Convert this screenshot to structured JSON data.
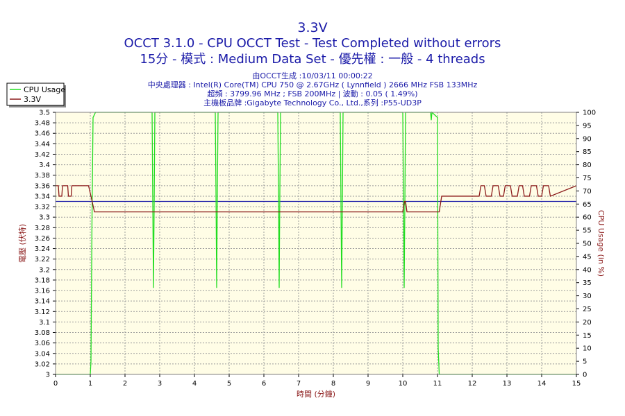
{
  "chart_data": {
    "type": "line",
    "title": "3.3V",
    "subtitle": "OCCT 3.1.0 - CPU OCCT Test - Test Completed without errors",
    "subtitle2": "15分 - 模式 : Medium Data Set - 優先權 : 一般 - 4 threads",
    "info": [
      "由OCCT生成 :10/03/11 00:00:22",
      "中央處理器 : Intel(R) Core(TM) CPU 750 @ 2.67GHz ( Lynnfield ) 2666 MHz FSB 133MHz",
      "超頻 : 3799.96 MHz ; FSB 200MHz | 波動 : 0.05 ( 1.49%)",
      "主機板品牌 :Gigabyte Technology Co., Ltd.,系列 :P55-UD3P"
    ],
    "xlabel": "時間 (分鐘)",
    "ylabel": "電壓 (伏特)",
    "y2label": "CPU Usage (in %)",
    "xlim": [
      0,
      15
    ],
    "ylim": [
      3.0,
      3.5
    ],
    "y2lim": [
      0,
      100
    ],
    "xticks": [
      "0",
      "1",
      "2",
      "3",
      "4",
      "5",
      "6",
      "7",
      "8",
      "9",
      "10",
      "11",
      "12",
      "13",
      "14",
      "15"
    ],
    "yticks": [
      "3",
      "3.02",
      "3.04",
      "3.06",
      "3.08",
      "3.1",
      "3.12",
      "3.14",
      "3.16",
      "3.18",
      "3.2",
      "3.22",
      "3.24",
      "3.26",
      "3.28",
      "3.3",
      "3.32",
      "3.34",
      "3.36",
      "3.38",
      "3.4",
      "3.42",
      "3.44",
      "3.46",
      "3.48",
      "3.5"
    ],
    "y2ticks": [
      "0",
      "5",
      "10",
      "15",
      "20",
      "25",
      "30",
      "35",
      "40",
      "45",
      "50",
      "55",
      "60",
      "65",
      "70",
      "75",
      "80",
      "85",
      "90",
      "95",
      "100"
    ],
    "grid": true,
    "legend_position": "top-left",
    "reference_line": {
      "y": 3.33,
      "color": "#1a1aa8"
    },
    "series": [
      {
        "name": "CPU Usage",
        "axis": "right",
        "color": "#22dd22",
        "x": [
          0.0,
          1.0,
          1.02,
          1.05,
          1.08,
          1.15,
          2.78,
          2.8,
          2.82,
          2.84,
          2.86,
          4.6,
          4.62,
          4.64,
          4.66,
          4.68,
          6.4,
          6.42,
          6.44,
          6.46,
          6.48,
          8.2,
          8.22,
          8.24,
          8.26,
          8.28,
          10.0,
          10.02,
          10.04,
          10.06,
          10.08,
          10.8,
          10.82,
          10.84,
          11.0,
          11.02,
          11.05,
          15.0
        ],
        "y": [
          0,
          0,
          5,
          60,
          98,
          100,
          100,
          65,
          33,
          65,
          100,
          100,
          70,
          33,
          70,
          100,
          100,
          70,
          33,
          70,
          100,
          100,
          65,
          33,
          65,
          100,
          100,
          65,
          33,
          65,
          100,
          100,
          97,
          100,
          98,
          10,
          0,
          0
        ]
      },
      {
        "name": "3.3V",
        "axis": "left",
        "color": "#8b1a1a",
        "x": [
          0.0,
          0.08,
          0.1,
          0.18,
          0.2,
          0.35,
          0.37,
          0.45,
          0.47,
          0.95,
          1.02,
          1.12,
          10.0,
          10.05,
          10.08,
          10.12,
          10.15,
          11.05,
          11.12,
          12.2,
          12.25,
          12.35,
          12.4,
          12.55,
          12.6,
          12.75,
          12.8,
          12.9,
          12.95,
          13.1,
          13.15,
          13.3,
          13.35,
          13.45,
          13.5,
          13.65,
          13.7,
          13.85,
          13.9,
          14.0,
          14.05,
          14.2,
          14.25,
          15.0
        ],
        "y": [
          3.36,
          3.36,
          3.34,
          3.34,
          3.36,
          3.36,
          3.34,
          3.34,
          3.36,
          3.36,
          3.34,
          3.31,
          3.31,
          3.33,
          3.33,
          3.31,
          3.31,
          3.31,
          3.34,
          3.34,
          3.36,
          3.36,
          3.34,
          3.34,
          3.36,
          3.36,
          3.34,
          3.34,
          3.36,
          3.36,
          3.34,
          3.34,
          3.36,
          3.36,
          3.34,
          3.34,
          3.36,
          3.36,
          3.34,
          3.34,
          3.36,
          3.36,
          3.34,
          3.36
        ]
      }
    ]
  }
}
